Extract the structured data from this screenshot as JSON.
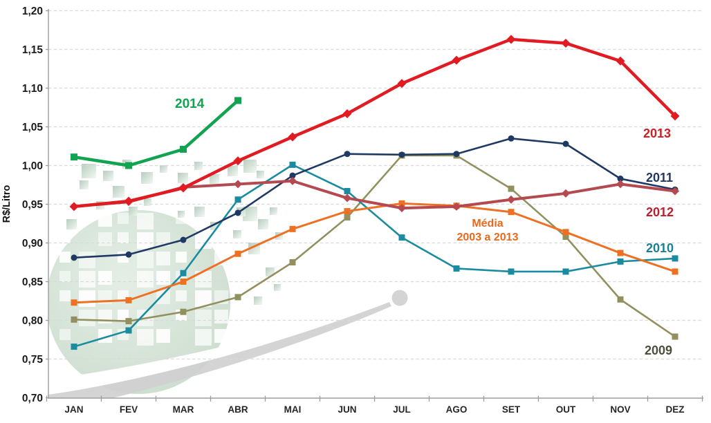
{
  "chart_data": {
    "type": "line",
    "title": "",
    "ylabel": "R$/Litro",
    "xlabel": "",
    "ylim": [
      0.7,
      1.2
    ],
    "ytick_step": 0.05,
    "ytick_labels": [
      "1,20",
      "1,15",
      "1,10",
      "1,05",
      "1,00",
      "0,95",
      "0,90",
      "0,85",
      "0,80",
      "0,75",
      "0,70"
    ],
    "categories": [
      "JAN",
      "FEV",
      "MAR",
      "ABR",
      "MAI",
      "JUN",
      "JUL",
      "AGO",
      "SET",
      "OUT",
      "NOV",
      "DEZ"
    ],
    "grid": "horizontal-dashed",
    "legend_position": "inline-labels",
    "axis_color": "#9d9d9d",
    "grid_color": "#d9d9d9",
    "tick_label_color": "#1a1a1a",
    "series": [
      {
        "name": "2009",
        "color": "#92905f",
        "marker": "square",
        "marker_size": 9,
        "width": 2.6,
        "values": [
          0.801,
          0.799,
          0.811,
          0.83,
          0.875,
          0.933,
          1.013,
          1.013,
          0.97,
          0.908,
          0.827,
          0.779
        ]
      },
      {
        "name": "2010",
        "color": "#1b8ba0",
        "marker": "square",
        "marker_size": 9,
        "width": 2.6,
        "values": [
          0.766,
          0.787,
          0.861,
          0.956,
          1.001,
          0.967,
          0.907,
          0.867,
          0.863,
          0.863,
          0.876,
          0.88
        ]
      },
      {
        "name": "Média 2003 a 2013",
        "color": "#ee7023",
        "marker": "square",
        "marker_size": 9,
        "width": 3,
        "values": [
          0.823,
          0.826,
          0.85,
          0.886,
          0.918,
          0.941,
          0.951,
          0.948,
          0.94,
          0.914,
          0.887,
          0.863
        ]
      },
      {
        "name": "2011",
        "color": "#1f3864",
        "marker": "circle",
        "marker_size": 4.5,
        "width": 2.6,
        "values": [
          0.881,
          0.885,
          0.904,
          0.939,
          0.987,
          1.015,
          1.014,
          1.015,
          1.035,
          1.028,
          0.983,
          0.969
        ]
      },
      {
        "name": "2012",
        "color": "#b4494f",
        "marker": "diamond",
        "marker_size": 8.5,
        "width": 4,
        "values": [
          0.947,
          0.953,
          0.972,
          0.976,
          0.98,
          0.958,
          0.945,
          0.947,
          0.956,
          0.964,
          0.976,
          0.967
        ]
      },
      {
        "name": "2013",
        "color": "#e21b23",
        "marker": "diamond",
        "marker_size": 9.2,
        "width": 4.5,
        "values": [
          0.947,
          0.954,
          0.971,
          1.006,
          1.037,
          1.067,
          1.106,
          1.136,
          1.163,
          1.158,
          1.135,
          1.064
        ]
      },
      {
        "name": "2014",
        "color": "#11a350",
        "marker": "square",
        "marker_size": 10,
        "width": 4.5,
        "values": [
          1.011,
          1.0,
          1.021,
          1.084,
          null,
          null,
          null,
          null,
          null,
          null,
          null,
          null
        ]
      }
    ],
    "annotations": [
      {
        "id": "label-2014",
        "text": "2014",
        "color": "#11a350"
      },
      {
        "id": "label-2013",
        "text": "2013",
        "color": "#cb2026"
      },
      {
        "id": "label-2011",
        "text": "2011",
        "color": "#203864"
      },
      {
        "id": "label-2012",
        "text": "2012",
        "color": "#bc202e"
      },
      {
        "id": "label-2010",
        "text": "2010",
        "color": "#1a7f95"
      },
      {
        "id": "label-2009",
        "text": "2009",
        "color": "#4e4e3c"
      },
      {
        "id": "label-media-line1",
        "text": "Média",
        "color": "#e9681c"
      },
      {
        "id": "label-media-line2",
        "text": "2003 a 2013",
        "color": "#e9681c"
      }
    ]
  }
}
